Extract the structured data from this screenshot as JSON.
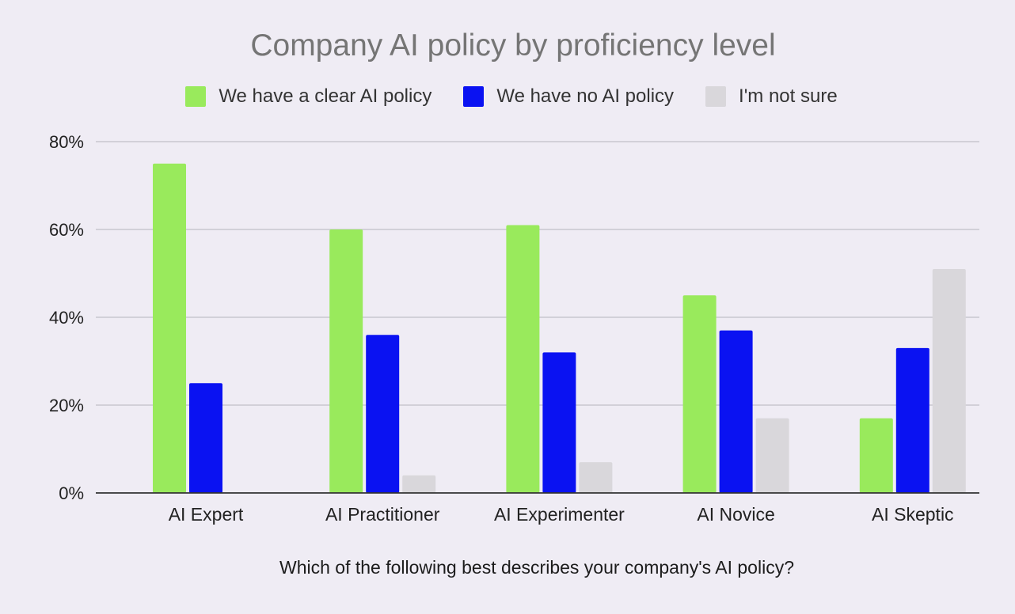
{
  "chart_data": {
    "type": "bar",
    "title": "Company AI policy by proficiency level",
    "xlabel": "Which of the following best describes your company's AI policy?",
    "ylabel": "",
    "categories": [
      "AI Expert",
      "AI Practitioner",
      "AI Experimenter",
      "AI Novice",
      "AI Skeptic"
    ],
    "series": [
      {
        "name": "We have a clear AI policy",
        "color": "#99ea5c",
        "values": [
          75,
          60,
          61,
          45,
          17
        ]
      },
      {
        "name": "We have no AI policy",
        "color": "#0a12f2",
        "values": [
          25,
          36,
          32,
          37,
          33
        ]
      },
      {
        "name": "I'm not sure",
        "color": "#d9d7db",
        "values": [
          0,
          4,
          7,
          17,
          51
        ]
      }
    ],
    "ylim": [
      0,
      80
    ],
    "yticks": [
      0,
      20,
      40,
      60,
      80
    ],
    "ytick_labels": [
      "0%",
      "20%",
      "40%",
      "60%",
      "80%"
    ],
    "grid": true,
    "legend_position": "top"
  }
}
